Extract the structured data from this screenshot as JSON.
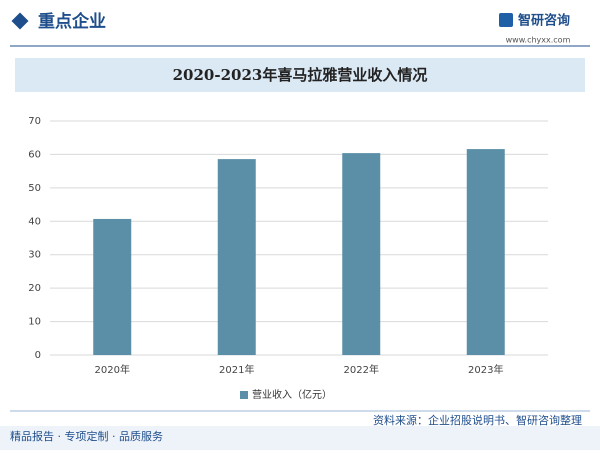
{
  "header": {
    "title": "重点企业",
    "logo_name": "智研咨询",
    "logo_url": "www.chyxx.com"
  },
  "chart_data": {
    "type": "bar",
    "title": "2020-2023年喜马拉雅营业收入情况",
    "categories": [
      "2020年",
      "2021年",
      "2022年",
      "2023年"
    ],
    "series": [
      {
        "name": "营业收入（亿元）",
        "color": "#5b8fa8",
        "values": [
          40.7,
          58.6,
          60.4,
          61.6
        ]
      }
    ],
    "ylim": [
      0,
      70
    ],
    "yticks": [
      0,
      10,
      20,
      30,
      40,
      50,
      60,
      70
    ],
    "grid": true,
    "legend": "bottom"
  },
  "footer": {
    "source": "资料来源：企业招股说明书、智研咨询整理",
    "slogan": "精品报告 · 专项定制 · 品质服务"
  }
}
